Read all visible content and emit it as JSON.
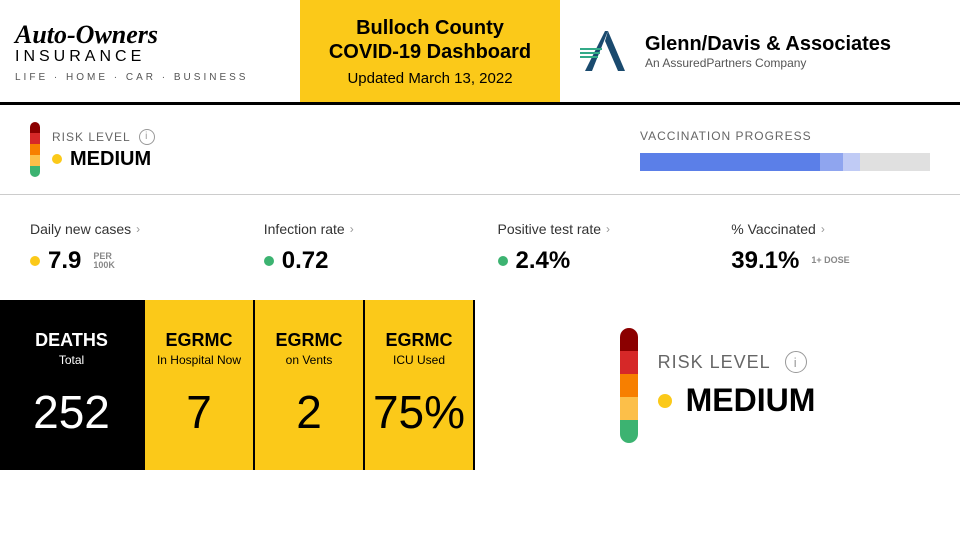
{
  "header": {
    "sponsor_left": {
      "name": "Auto-Owners",
      "line2": "INSURANCE",
      "tagline": "LIFE · HOME · CAR · BUSINESS"
    },
    "title": "Bulloch County\nCOVID-19 Dashboard",
    "updated": "Updated March 13, 2022",
    "sponsor_right": {
      "name": "Glenn/Davis & Associates",
      "sub": "An AssuredPartners Company"
    },
    "title_bg": "#fbc919"
  },
  "risk": {
    "label": "RISK LEVEL",
    "value": "MEDIUM",
    "dot_color": "#fbc919",
    "segments": [
      "#8b0000",
      "#d62828",
      "#f77f00",
      "#fcbf49",
      "#3cb371"
    ]
  },
  "vaccination": {
    "label": "VACCINATION PROGRESS",
    "segments": [
      {
        "width": 62,
        "color": "#5b7fe8"
      },
      {
        "width": 8,
        "color": "#8fa5ef"
      },
      {
        "width": 6,
        "color": "#c0cbf5"
      }
    ],
    "bg": "#e0e0e0"
  },
  "metrics": [
    {
      "label": "Daily new cases",
      "value": "7.9",
      "sub": "PER\n100K",
      "dot": "#fbc919"
    },
    {
      "label": "Infection rate",
      "value": "0.72",
      "sub": "",
      "dot": "#3cb371"
    },
    {
      "label": "Positive test rate",
      "value": "2.4%",
      "sub": "",
      "dot": "#3cb371"
    },
    {
      "label": "% Vaccinated",
      "value": "39.1%",
      "sub": "1+ DOSE",
      "dot": ""
    }
  ],
  "stats": [
    {
      "title": "DEATHS",
      "sub": "Total",
      "value": "252",
      "bg": "#000000",
      "fg": "#ffffff"
    },
    {
      "title": "EGRMC",
      "sub": "In Hospital Now",
      "value": "7",
      "bg": "#fbc919",
      "fg": "#000000"
    },
    {
      "title": "EGRMC",
      "sub": "on Vents",
      "value": "2",
      "bg": "#fbc919",
      "fg": "#000000"
    },
    {
      "title": "EGRMC",
      "sub": "ICU Used",
      "value": "75%",
      "bg": "#fbc919",
      "fg": "#000000"
    }
  ]
}
